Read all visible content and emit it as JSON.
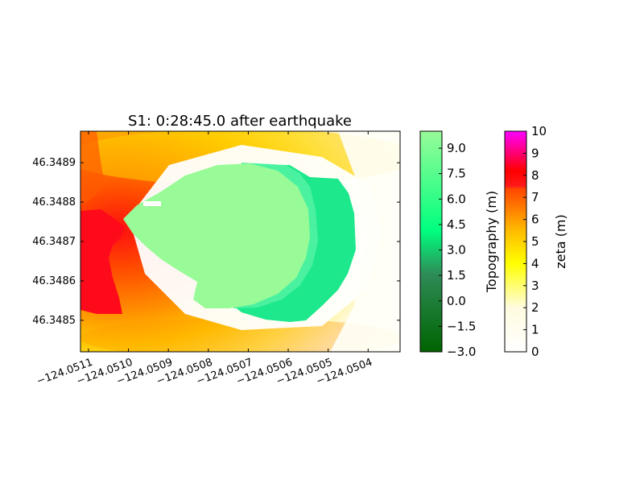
{
  "chart_data": {
    "type": "heatmap",
    "title": "S1: 0:28:45.0 after earthquake",
    "xlabel": "",
    "ylabel": "",
    "x_ticks": [
      "−124.0511",
      "−124.0510",
      "−124.0509",
      "−124.0508",
      "−124.0507",
      "−124.0506",
      "−124.0505",
      "−124.0504"
    ],
    "x_tick_values": [
      -124.0511,
      -124.051,
      -124.0509,
      -124.0508,
      -124.0507,
      -124.0506,
      -124.0505,
      -124.0504
    ],
    "y_ticks": [
      "46.3489",
      "46.3488",
      "46.3487",
      "46.3486",
      "46.3485"
    ],
    "y_tick_values": [
      46.3489,
      46.3488,
      46.3487,
      46.3486,
      46.3485
    ],
    "xlim": [
      -124.05112,
      -124.05032
    ],
    "ylim": [
      46.34842,
      46.34898
    ],
    "fields": {
      "topography": {
        "description_of_visible_region": "island land mass",
        "approx_value_main": 9.0,
        "approx_value_east_slope": 5.0
      },
      "zeta": {
        "max_visible_west": 7.5,
        "min_visible_east": 0.0
      }
    },
    "colorbars": [
      {
        "label": "Topography (m)",
        "range": [
          -3.0,
          10.0
        ],
        "ticks": [
          "9.0",
          "7.5",
          "6.0",
          "4.5",
          "3.0",
          "1.5",
          "0.0",
          "−1.5",
          "−3.0"
        ],
        "tick_values": [
          9.0,
          7.5,
          6.0,
          4.5,
          3.0,
          1.5,
          0.0,
          -1.5,
          -3.0
        ],
        "colors": [
          "#006400",
          "#2e8b57",
          "#00ff7f",
          "#98fb98"
        ]
      },
      {
        "label": "zeta (m)",
        "range": [
          0,
          10
        ],
        "ticks": [
          "10",
          "9",
          "8",
          "7",
          "6",
          "5",
          "4",
          "3",
          "2",
          "1",
          "0"
        ],
        "tick_values": [
          10,
          9,
          8,
          7,
          6,
          5,
          4,
          3,
          2,
          1,
          0
        ],
        "colors": [
          "#ffffff",
          "#ffff00",
          "#ff4500",
          "#ff0000",
          "#ff00ff"
        ]
      }
    ]
  }
}
